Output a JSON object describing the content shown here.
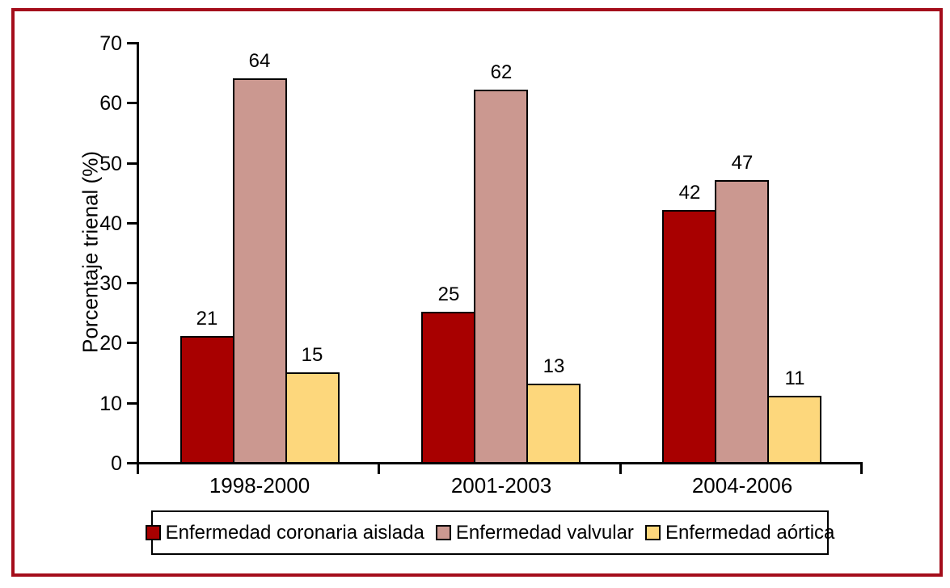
{
  "figure": {
    "background_color": "#ffffff",
    "border_color": "#A40D1B",
    "axis_color": "#000000",
    "bar_outline_color": "#000000"
  },
  "chart_data": {
    "type": "bar",
    "title": "",
    "xlabel": "",
    "ylabel": "Porcentaje trienal (%)",
    "categories": [
      "1998-2000",
      "2001-2003",
      "2004-2006"
    ],
    "series": [
      {
        "name": "Enfermedad coronaria aislada",
        "color": "#A80000",
        "values": [
          21,
          25,
          42
        ]
      },
      {
        "name": "Enfermedad valvular",
        "color": "#CB9890",
        "values": [
          64,
          62,
          47
        ]
      },
      {
        "name": "Enfermedad aórtica",
        "color": "#FDD77C",
        "values": [
          15,
          13,
          11
        ]
      }
    ],
    "ylim": [
      0,
      70
    ],
    "ytick_step": 10,
    "ytick_labels": [
      "0",
      "10",
      "20",
      "30",
      "40",
      "50",
      "60",
      "70"
    ],
    "bar_value_labels_shown": true,
    "grid": false,
    "legend_position": "bottom"
  }
}
